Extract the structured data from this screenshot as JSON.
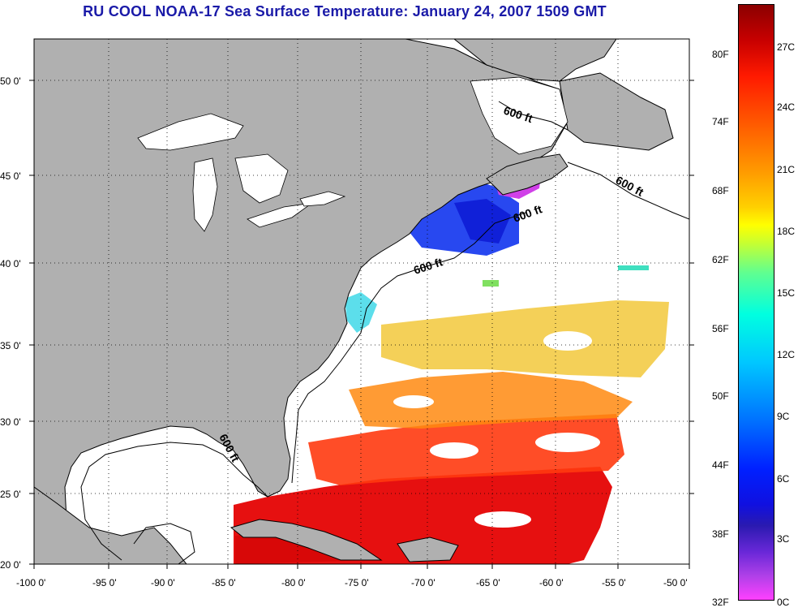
{
  "title": "RU COOL  NOAA-17  Sea Surface Temperature:  January 24, 2007 1509 GMT",
  "map": {
    "lon_ticks": [
      "-100 0'",
      "-95 0'",
      "-90 0'",
      "-85 0'",
      "-80 0'",
      "-75 0'",
      "-70 0'",
      "-65 0'",
      "-60 0'",
      "-55 0'",
      "-50 0'"
    ],
    "lat_ticks": [
      "50 0'",
      "45 0'",
      "40 0'",
      "35 0'",
      "30 0'",
      "25 0'",
      "20 0'"
    ],
    "contour_labels": [
      "600 ft",
      "600 ft",
      "600 ft",
      "600 ft",
      "600 ft"
    ],
    "land_color": "#b0b0b0",
    "ocean_color": "#ffffff"
  },
  "colorbar": {
    "fahrenheit": [
      "80F",
      "74F",
      "68F",
      "62F",
      "56F",
      "50F",
      "44F",
      "38F",
      "32F"
    ],
    "celsius": [
      "27C",
      "24C",
      "21C",
      "18C",
      "15C",
      "12C",
      "9C",
      "6C",
      "3C",
      "0C"
    ]
  }
}
